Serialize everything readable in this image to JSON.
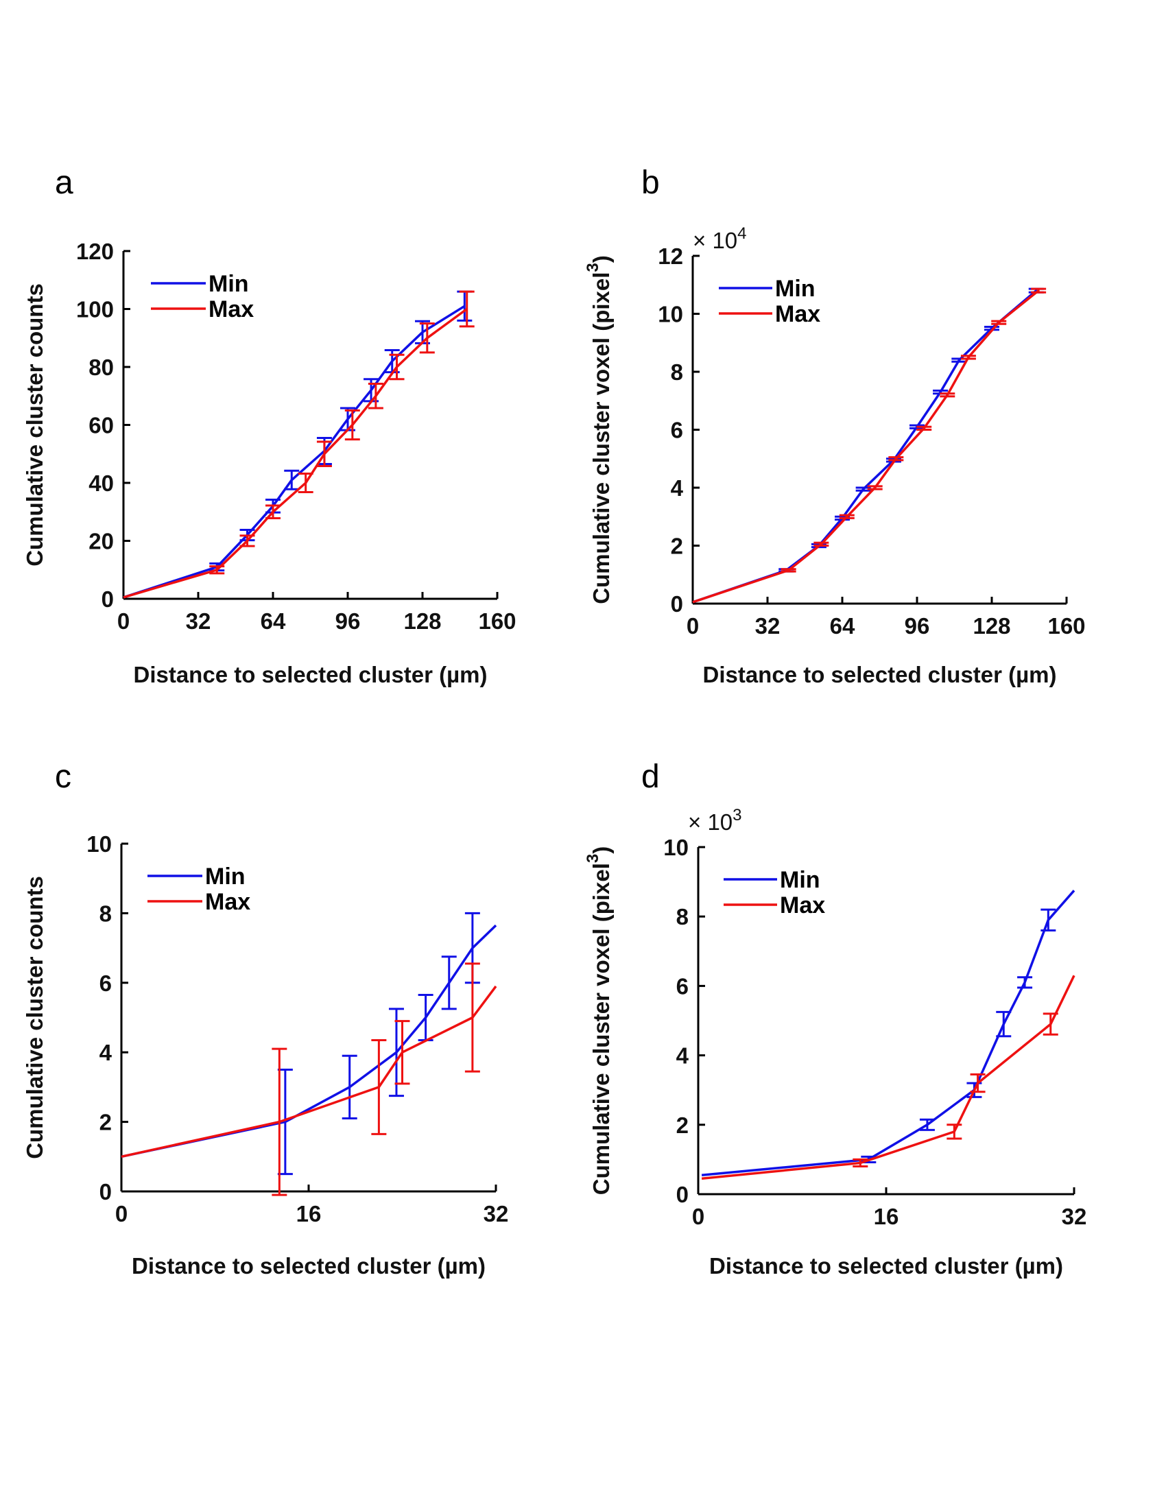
{
  "colors": {
    "min": "#1010e6",
    "max": "#ee1111",
    "axis": "#000000"
  },
  "chart_data": [
    {
      "panel": "a",
      "type": "line",
      "title": "",
      "xlabel": "Distance to selected cluster (µm)",
      "ylabel": "Cumulative cluster counts",
      "xlim": [
        0,
        160
      ],
      "ylim": [
        0,
        120
      ],
      "xticks": [
        0,
        32,
        64,
        96,
        128,
        160
      ],
      "yticks": [
        0,
        20,
        40,
        60,
        80,
        100,
        120
      ],
      "legend": {
        "placement": "top-left"
      },
      "series": [
        {
          "name": "Min",
          "color": "#1010e6",
          "x": [
            0,
            40,
            53,
            64,
            72,
            86,
            96,
            106,
            115,
            128,
            146
          ],
          "y": [
            0.5,
            11,
            22,
            32,
            41,
            51,
            62,
            72,
            82,
            92,
            101
          ],
          "err": [
            0,
            1.2,
            1.8,
            2.2,
            3.2,
            4.5,
            3.8,
            3.8,
            3.8,
            3.8,
            5
          ]
        },
        {
          "name": "Max",
          "color": "#ee1111",
          "x": [
            0,
            40,
            53,
            64,
            78,
            86,
            98,
            108,
            117,
            130,
            147
          ],
          "y": [
            0.5,
            10,
            20,
            30,
            40,
            50,
            60,
            70,
            80,
            90,
            100
          ],
          "err": [
            0,
            1.2,
            1.8,
            2.2,
            3.2,
            4.2,
            5,
            4.2,
            4.2,
            5,
            6
          ]
        }
      ]
    },
    {
      "panel": "b",
      "type": "line",
      "title": "",
      "xlabel": "Distance to selected cluster (µm)",
      "ylabel": "Cumulative cluster voxel (pixel",
      "ylabel_sup": "3",
      "ylabel_end": ")",
      "yscale_base": "× 10",
      "yscale_exp": "4",
      "xlim": [
        0,
        160
      ],
      "ylim": [
        0,
        12
      ],
      "xticks": [
        0,
        32,
        64,
        96,
        128,
        160
      ],
      "yticks": [
        0,
        2,
        4,
        6,
        8,
        10,
        12
      ],
      "legend": {
        "placement": "top-left"
      },
      "series": [
        {
          "name": "Min",
          "color": "#1010e6",
          "x": [
            0,
            40,
            54,
            64,
            73,
            86,
            96,
            106,
            114,
            128,
            147
          ],
          "y": [
            0.05,
            1.15,
            2.0,
            2.95,
            3.95,
            4.95,
            6.1,
            7.3,
            8.4,
            9.5,
            10.8
          ],
          "err": [
            0,
            0.04,
            0.05,
            0.05,
            0.05,
            0.05,
            0.05,
            0.05,
            0.05,
            0.05,
            0.06
          ]
        },
        {
          "name": "Max",
          "color": "#ee1111",
          "x": [
            0,
            41,
            55,
            66,
            78,
            87,
            99,
            109,
            118,
            131,
            148
          ],
          "y": [
            0.05,
            1.15,
            2.05,
            3.0,
            4.0,
            5.0,
            6.05,
            7.2,
            8.5,
            9.7,
            10.8
          ],
          "err": [
            0,
            0.04,
            0.05,
            0.05,
            0.05,
            0.05,
            0.05,
            0.05,
            0.05,
            0.05,
            0.06
          ]
        }
      ]
    },
    {
      "panel": "c",
      "type": "line",
      "title": "",
      "xlabel": "Distance to selected cluster (µm)",
      "ylabel": "Cumulative cluster counts",
      "xlim": [
        0,
        32
      ],
      "ylim": [
        0,
        10
      ],
      "xticks": [
        0,
        16,
        32
      ],
      "yticks": [
        0,
        2,
        4,
        6,
        8,
        10
      ],
      "legend": {
        "placement": "top-left"
      },
      "series": [
        {
          "name": "Min",
          "color": "#1010e6",
          "x": [
            0,
            14,
            19.5,
            23.5,
            26,
            28,
            30,
            32
          ],
          "y": [
            1,
            2,
            3,
            4,
            5,
            6,
            7,
            7.65
          ],
          "err": [
            0,
            1.5,
            0.9,
            1.25,
            0.65,
            0.75,
            1.0,
            0
          ]
        },
        {
          "name": "Max",
          "color": "#ee1111",
          "x": [
            0,
            13.5,
            22,
            24,
            30,
            32
          ],
          "y": [
            1,
            2,
            3,
            4,
            5,
            5.9
          ],
          "err": [
            0,
            2.1,
            1.35,
            0.9,
            1.55,
            0
          ]
        }
      ]
    },
    {
      "panel": "d",
      "type": "line",
      "title": "",
      "xlabel": "Distance to selected cluster (µm)",
      "ylabel": "Cumulative cluster voxel (pixel",
      "ylabel_sup": "3",
      "ylabel_end": ")",
      "yscale_base": "× 10",
      "yscale_exp": "3",
      "xlim": [
        0,
        32
      ],
      "ylim": [
        0,
        10
      ],
      "xticks": [
        0,
        16,
        32
      ],
      "yticks": [
        0,
        2,
        4,
        6,
        8,
        10
      ],
      "legend": {
        "placement": "top-left"
      },
      "series": [
        {
          "name": "Min",
          "color": "#1010e6",
          "x": [
            0.3,
            14.5,
            19.5,
            23.5,
            26,
            27.8,
            29.8,
            32
          ],
          "y": [
            0.55,
            1.0,
            2.0,
            3.0,
            4.9,
            6.1,
            7.9,
            8.75
          ],
          "err": [
            0,
            0.08,
            0.15,
            0.2,
            0.35,
            0.15,
            0.3,
            0
          ]
        },
        {
          "name": "Max",
          "color": "#ee1111",
          "x": [
            0.3,
            13.8,
            21.8,
            23.8,
            30,
            32
          ],
          "y": [
            0.45,
            0.9,
            1.8,
            3.2,
            4.9,
            6.3
          ],
          "err": [
            0,
            0.1,
            0.2,
            0.25,
            0.3,
            0
          ]
        }
      ]
    }
  ]
}
